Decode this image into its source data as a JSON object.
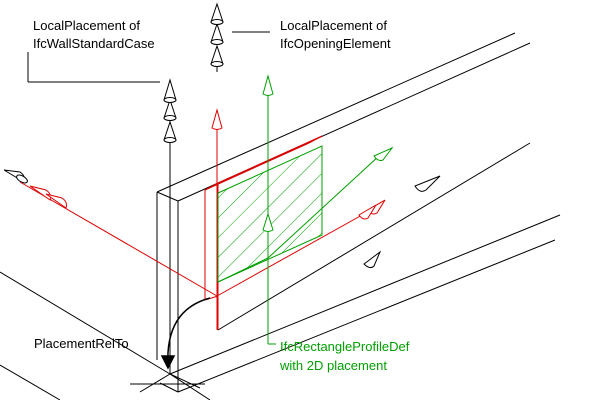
{
  "labels": {
    "wall_placement_line1": "LocalPlacement of",
    "wall_placement_line2": "IfcWallStandardCase",
    "opening_placement_line1": "LocalPlacement of",
    "opening_placement_line2": "IfcOpeningElement",
    "placement_rel_to": "PlacementRelTo",
    "profile_line1": "IfcRectangleProfileDef",
    "profile_line2": "with 2D placement"
  },
  "colors": {
    "wall": "#000000",
    "opening_placement": "#e00000",
    "profile": "#00a000",
    "background": "#ffffff"
  },
  "icons": [
    "cone-arrow-icon",
    "curved-arrow-icon"
  ]
}
